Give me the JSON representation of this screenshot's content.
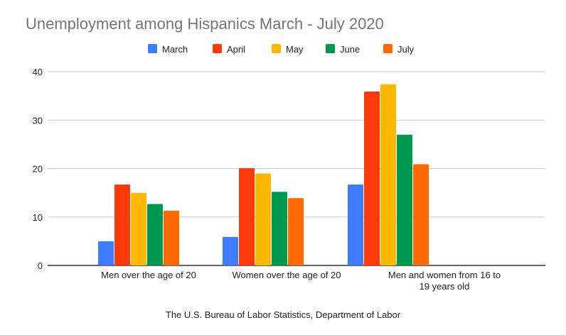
{
  "chart_data": {
    "type": "bar",
    "title": "Unemployment among Hispanics March - July 2020",
    "xlabel": "The U.S. Bureau of Labor Statistics, Department of Labor",
    "ylabel": "",
    "ylim": [
      0,
      40
    ],
    "yticks": [
      "0",
      "10",
      "20",
      "30",
      "40"
    ],
    "grid": true,
    "legend_position": "top",
    "categories": [
      "Men over the age of 20",
      "Women over the age of 20",
      "Men and women from 16 to 19 years old"
    ],
    "category_lines": [
      [
        "Men over the age of 20"
      ],
      [
        "Women over the age of 20"
      ],
      [
        "Men and women from 16 to",
        "19 years old"
      ]
    ],
    "series": [
      {
        "name": "March",
        "color": "#3d7cff",
        "values": [
          5.0,
          5.9,
          16.7
        ]
      },
      {
        "name": "April",
        "color": "#ff3a0a",
        "values": [
          16.7,
          20.1,
          35.9
        ]
      },
      {
        "name": "May",
        "color": "#ffb800",
        "values": [
          15.0,
          19.0,
          37.4
        ]
      },
      {
        "name": "June",
        "color": "#00974f",
        "values": [
          12.7,
          15.2,
          27.0
        ]
      },
      {
        "name": "July",
        "color": "#ff6a00",
        "values": [
          11.3,
          13.9,
          20.9
        ]
      }
    ]
  }
}
